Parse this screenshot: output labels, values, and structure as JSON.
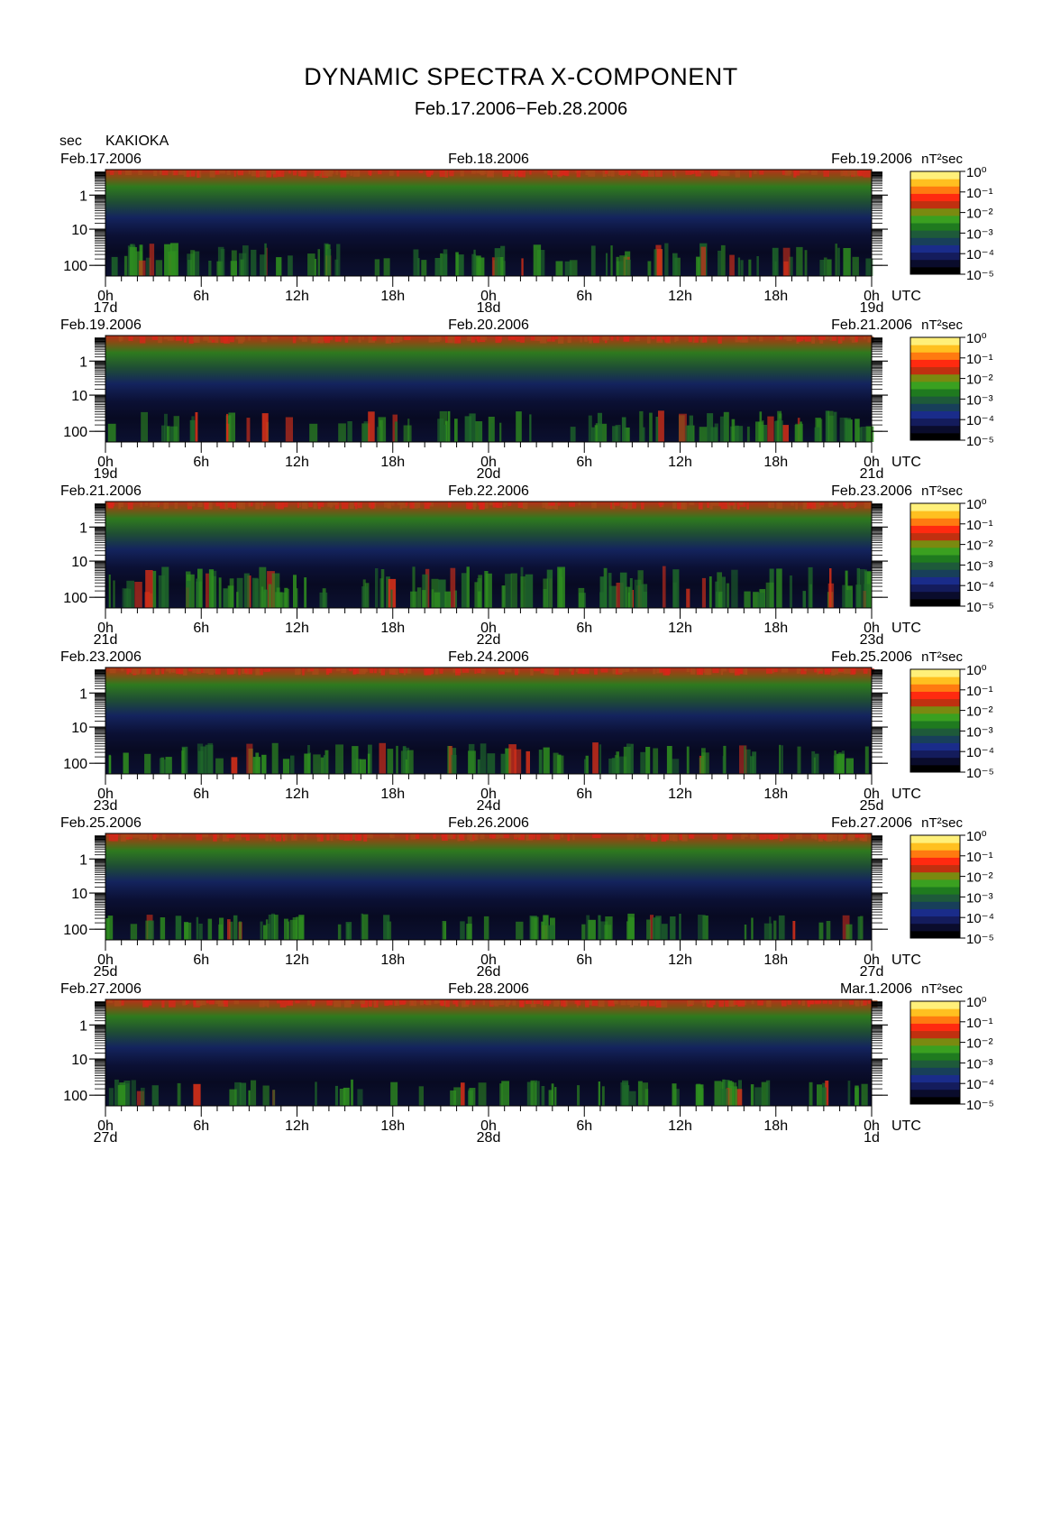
{
  "chart_data": {
    "type": "heatmap",
    "title": "DYNAMIC SPECTRA X-COMPONENT",
    "subtitle": "Feb.17.2006−Feb.28.2006",
    "station": "KAKIOKA",
    "y_unit": "sec",
    "y_ticks": [
      "1",
      "10",
      "100"
    ],
    "y_scale": "log",
    "x_unit": "UTC",
    "x_ticks": [
      "0h",
      "6h",
      "12h",
      "18h",
      "0h",
      "6h",
      "12h",
      "18h",
      "0h"
    ],
    "colorbar": {
      "unit": "nT²sec",
      "labels": [
        "10⁰",
        "10⁻¹",
        "10⁻²",
        "10⁻³",
        "10⁻⁴",
        "10⁻⁵"
      ],
      "colors": [
        "#000000",
        "#101440",
        "#1a2c8a",
        "#1e5a3a",
        "#1f7a1f",
        "#3aa020",
        "#7a8a10",
        "#c03010",
        "#ff2a10",
        "#ff7a10",
        "#ffc020",
        "#fff07a"
      ]
    },
    "panels": [
      {
        "date_left": "Feb.17.2006",
        "date_mid": "Feb.18.2006",
        "date_right": "Feb.19.2006",
        "day_labels": [
          "17d",
          "18d",
          "19d"
        ],
        "activity": 0.55
      },
      {
        "date_left": "Feb.19.2006",
        "date_mid": "Feb.20.2006",
        "date_right": "Feb.21.2006",
        "day_labels": [
          "19d",
          "20d",
          "21d"
        ],
        "activity": 0.5
      },
      {
        "date_left": "Feb.21.2006",
        "date_mid": "Feb.22.2006",
        "date_right": "Feb.23.2006",
        "day_labels": [
          "21d",
          "22d",
          "23d"
        ],
        "activity": 0.8
      },
      {
        "date_left": "Feb.23.2006",
        "date_mid": "Feb.24.2006",
        "date_right": "Feb.25.2006",
        "day_labels": [
          "23d",
          "24d",
          "25d"
        ],
        "activity": 0.5
      },
      {
        "date_left": "Feb.25.2006",
        "date_mid": "Feb.26.2006",
        "date_right": "Feb.27.2006",
        "day_labels": [
          "25d",
          "26d",
          "27d"
        ],
        "activity": 0.35
      },
      {
        "date_left": "Feb.27.2006",
        "date_mid": "Feb.28.2006",
        "date_right": "Mar.1.2006",
        "day_labels": [
          "27d",
          "28d",
          "1d"
        ],
        "activity": 0.35
      }
    ]
  }
}
